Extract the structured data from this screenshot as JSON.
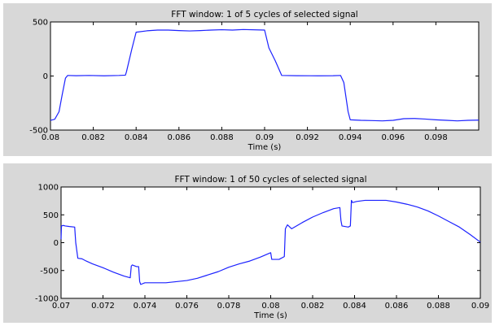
{
  "chart_data": [
    {
      "type": "line",
      "title": "FFT window: 1 of 5 cycles of selected signal",
      "xlabel": "Time (s)",
      "ylabel": "",
      "xlim": [
        0.08,
        0.1
      ],
      "ylim": [
        -500,
        500
      ],
      "xticks": [
        "0.08",
        "0.082",
        "0.084",
        "0.086",
        "0.088",
        "0.09",
        "0.092",
        "0.094",
        "0.096",
        "0.098"
      ],
      "yticks": [
        "500",
        "0",
        "-500"
      ],
      "color": "#1c22ff",
      "series": [
        {
          "x": [
            0.08,
            0.0802,
            0.0804,
            0.08055,
            0.0807,
            0.0808,
            0.0812,
            0.0818,
            0.0825,
            0.0832,
            0.0835,
            0.08355,
            0.0838,
            0.084,
            0.0845,
            0.085,
            0.0855,
            0.086,
            0.0865,
            0.087,
            0.0875,
            0.088,
            0.0885,
            0.089,
            0.09,
            0.0902,
            0.0905,
            0.0908,
            0.0915,
            0.0925,
            0.0932,
            0.09355,
            0.0937,
            0.0939,
            0.094,
            0.0945,
            0.095,
            0.0955,
            0.096,
            0.0965,
            0.097,
            0.0975,
            0.098,
            0.0985,
            0.099,
            0.0995,
            0.1
          ],
          "y": [
            -410,
            -400,
            -330,
            -170,
            -20,
            5,
            3,
            5,
            2,
            5,
            8,
            40,
            250,
            405,
            418,
            425,
            425,
            420,
            417,
            420,
            425,
            428,
            425,
            430,
            425,
            260,
            140,
            5,
            3,
            2,
            3,
            5,
            -60,
            -330,
            -405,
            -410,
            -412,
            -415,
            -410,
            -395,
            -393,
            -398,
            -405,
            -410,
            -415,
            -410,
            -408
          ]
        }
      ]
    },
    {
      "type": "line",
      "title": "FFT window: 1 of 50 cycles of selected signal",
      "xlabel": "Time (s)",
      "ylabel": "",
      "xlim": [
        0.07,
        0.09
      ],
      "ylim": [
        -1000,
        1000
      ],
      "xticks": [
        "0.07",
        "0.072",
        "0.074",
        "0.076",
        "0.078",
        "0.08",
        "0.082",
        "0.084",
        "0.086",
        "0.088",
        "0.09"
      ],
      "yticks": [
        "1000",
        "500",
        "0",
        "-500",
        "-1000"
      ],
      "color": "#1c22ff",
      "series": [
        {
          "x": [
            0.07,
            0.07002,
            0.0701,
            0.0702,
            0.0704,
            0.07065,
            0.0707,
            0.0708,
            0.071,
            0.0712,
            0.0715,
            0.072,
            0.0725,
            0.073,
            0.0733,
            0.07335,
            0.0734,
            0.0736,
            0.0737,
            0.07375,
            0.0738,
            0.074,
            0.0745,
            0.075,
            0.0755,
            0.076,
            0.0765,
            0.077,
            0.0775,
            0.078,
            0.0785,
            0.079,
            0.0795,
            0.08,
            0.08005,
            0.0801,
            0.0804,
            0.08065,
            0.0807,
            0.0808,
            0.081,
            0.0815,
            0.082,
            0.0825,
            0.083,
            0.0833,
            0.08335,
            0.0834,
            0.0837,
            0.0838,
            0.08385,
            0.0839,
            0.0841,
            0.0845,
            0.085,
            0.0855,
            0.086,
            0.0865,
            0.087,
            0.0875,
            0.088,
            0.0885,
            0.089,
            0.0895,
            0.09
          ],
          "y": [
            60,
            300,
            310,
            300,
            290,
            280,
            0,
            -280,
            -290,
            -330,
            -380,
            -450,
            -530,
            -600,
            -630,
            -420,
            -400,
            -430,
            -430,
            -700,
            -750,
            -720,
            -720,
            -720,
            -700,
            -680,
            -640,
            -580,
            -520,
            -440,
            -380,
            -330,
            -260,
            -180,
            -300,
            -300,
            -300,
            -250,
            250,
            320,
            250,
            360,
            460,
            540,
            610,
            630,
            400,
            300,
            280,
            300,
            760,
            720,
            740,
            760,
            760,
            760,
            730,
            690,
            640,
            570,
            480,
            380,
            280,
            150,
            10
          ]
        }
      ]
    }
  ]
}
